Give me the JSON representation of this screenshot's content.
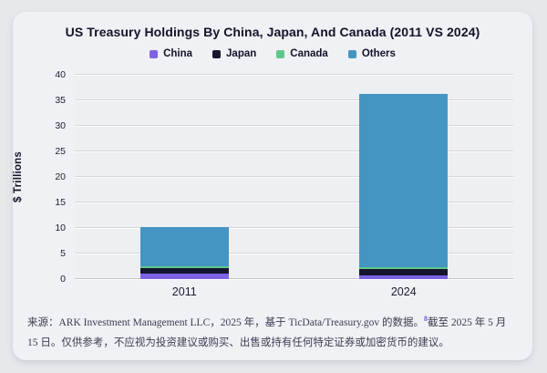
{
  "page": {
    "background": "#e7e8ec",
    "card_background": "#f0f1f4"
  },
  "header": {
    "title": "US Treasury Holdings By China, Japan, And Canada (2011 VS 2024)"
  },
  "chart_data": {
    "type": "bar",
    "stacked": true,
    "title": "US Treasury Holdings By China, Japan, And Canada (2011 VS 2024)",
    "categories": [
      "2011",
      "2024"
    ],
    "series": [
      {
        "name": "China",
        "color": "#7d63e4",
        "values": [
          1.15,
          0.78
        ]
      },
      {
        "name": "Japan",
        "color": "#15152e",
        "values": [
          1.06,
          1.13
        ]
      },
      {
        "name": "Canada",
        "color": "#5fc78b",
        "values": [
          0.1,
          0.35
        ]
      },
      {
        "name": "Others",
        "color": "#4495c2",
        "values": [
          7.8,
          33.95
        ]
      }
    ],
    "totals": [
      10.1,
      36.2
    ],
    "xlabel": "",
    "ylabel": "$ Trillions",
    "ylim": [
      0,
      40
    ],
    "ytick_step": 5,
    "grid": true,
    "legend_position": "top"
  },
  "footer": {
    "source_text": "来源：ARK Investment Management LLC，2025 年，基于 TicData/Treasury.gov 的数据。",
    "footnote_marker": "8",
    "footnote_color": "#6b5ce0",
    "disclaimer_text": "截至 2025 年 5 月 15 日。仅供参考，不应视为投资建议或购买、出售或持有任何特定证券或加密货币的建议。"
  }
}
